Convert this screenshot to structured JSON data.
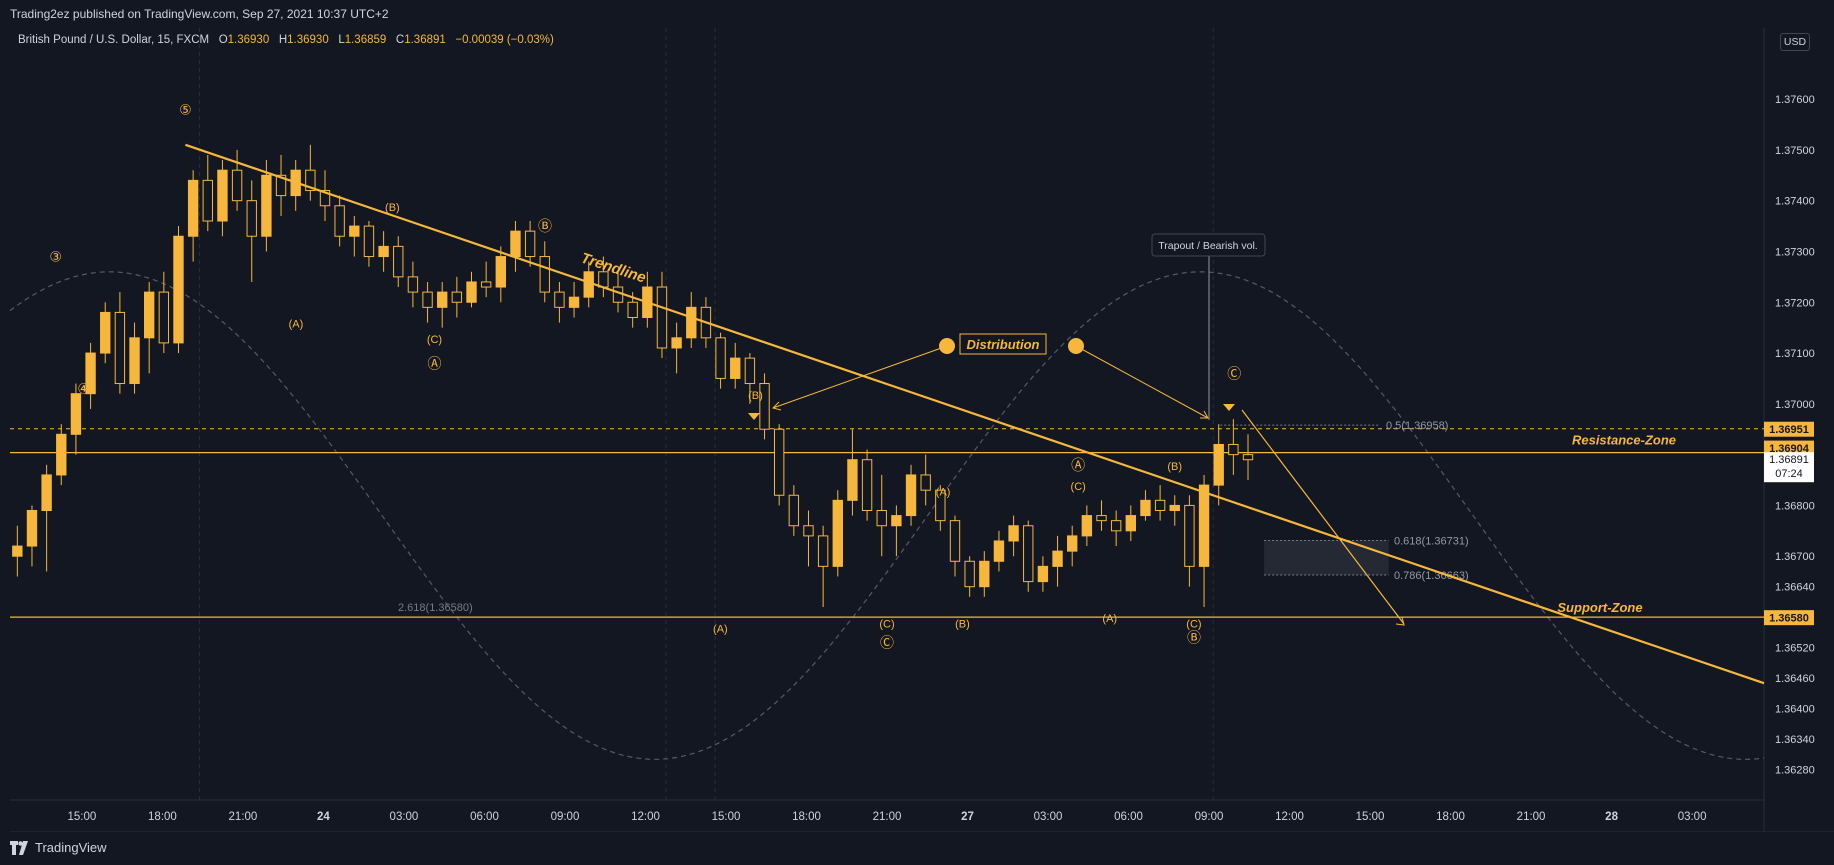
{
  "header": {
    "publish_line": "Trading2ez published on TradingView.com, Sep 27, 2021 10:37 UTC+2"
  },
  "legend": {
    "symbol": "British Pound / U.S. Dollar, 15, FXCM",
    "o_label": "O",
    "o_value": "1.36930",
    "h_label": "H",
    "h_value": "1.36930",
    "l_label": "L",
    "l_value": "1.36859",
    "c_label": "C",
    "c_value": "1.36891",
    "change": "−0.00039 (−0.03%)"
  },
  "currency_button": "USD",
  "footer": {
    "brand": "TradingView"
  },
  "colors": {
    "background": "#131722",
    "accent": "#f6b73c",
    "bull_candle": "#f6b73c",
    "bear_candle": "#131722",
    "grid": "#2a2e39",
    "text": "#d1d4dc"
  },
  "chart_data": {
    "type": "candlestick",
    "title": "British Pound / U.S. Dollar, 15, FXCM",
    "ylim": [
      1.3622,
      1.3774
    ],
    "y_ticks": [
      "1.37600",
      "1.37500",
      "1.37400",
      "1.37300",
      "1.37200",
      "1.37100",
      "1.37000",
      "1.36800",
      "1.36700",
      "1.36640",
      "1.36520",
      "1.36460",
      "1.36400",
      "1.36340",
      "1.36280"
    ],
    "x_ticks": [
      "15:00",
      "18:00",
      "21:00",
      "24",
      "03:00",
      "06:00",
      "09:00",
      "12:00",
      "15:00",
      "18:00",
      "21:00",
      "27",
      "03:00",
      "06:00",
      "09:00",
      "12:00",
      "15:00",
      "18:00",
      "21:00",
      "28",
      "03:00"
    ],
    "price_badges": [
      {
        "label": "1.36951",
        "style": "filled"
      },
      {
        "label": "1.36904",
        "style": "filled"
      },
      {
        "label": "1.36891",
        "sublabel": "07:24",
        "style": "current"
      },
      {
        "label": "1.36580",
        "style": "filled"
      }
    ],
    "levels": [
      {
        "name": "Resistance-Zone",
        "price": 1.36904
      },
      {
        "name": "Support-Zone",
        "price": 1.3658
      },
      {
        "name": "dashed-high",
        "price": 1.36951
      }
    ],
    "fib_labels": [
      "0.5(1.36958)",
      "0.618(1.36731)",
      "0.786(1.36663)",
      "2.618(1.36580)"
    ],
    "annotations": {
      "trendline": "Trendline",
      "distribution": "Distribution",
      "trapout": "Trapout / Bearish vol."
    },
    "wave_labels": [
      {
        "text": "⑤",
        "x": 0.1,
        "y": 1.3757
      },
      {
        "text": "③",
        "x": 0.026,
        "y": 1.3728
      },
      {
        "text": "④",
        "x": 0.042,
        "y": 1.3702
      },
      {
        "text": "(B)",
        "x": 0.218,
        "y": 1.3738
      },
      {
        "text": "Ⓑ",
        "x": 0.305,
        "y": 1.3734
      },
      {
        "text": "(A)",
        "x": 0.163,
        "y": 1.3715
      },
      {
        "text": "(C)",
        "x": 0.242,
        "y": 1.3712
      },
      {
        "text": "Ⓐ",
        "x": 0.242,
        "y": 1.3707
      },
      {
        "text": "(B)",
        "x": 0.425,
        "y": 1.3701
      },
      {
        "text": "(A)",
        "x": 0.405,
        "y": 1.3655
      },
      {
        "text": "(C)",
        "x": 0.5,
        "y": 1.3656
      },
      {
        "text": "Ⓒ",
        "x": 0.5,
        "y": 1.3652
      },
      {
        "text": "(B)",
        "x": 0.543,
        "y": 1.3656
      },
      {
        "text": "(A)",
        "x": 0.532,
        "y": 1.3682
      },
      {
        "text": "Ⓐ",
        "x": 0.609,
        "y": 1.3687
      },
      {
        "text": "(C)",
        "x": 0.609,
        "y": 1.3683
      },
      {
        "text": "(B)",
        "x": 0.664,
        "y": 1.3687
      },
      {
        "text": "(A)",
        "x": 0.627,
        "y": 1.3657
      },
      {
        "text": "(C)",
        "x": 0.675,
        "y": 1.3656
      },
      {
        "text": "Ⓑ",
        "x": 0.675,
        "y": 1.3653
      },
      {
        "text": "Ⓒ",
        "x": 0.698,
        "y": 1.3705
      }
    ],
    "candles": [
      [
        1.367,
        1.3676,
        1.3666,
        1.3672
      ],
      [
        1.3672,
        1.368,
        1.3668,
        1.3679
      ],
      [
        1.3679,
        1.3688,
        1.3667,
        1.3686
      ],
      [
        1.3686,
        1.3696,
        1.3684,
        1.3694
      ],
      [
        1.3694,
        1.3704,
        1.369,
        1.3702
      ],
      [
        1.3702,
        1.3712,
        1.3699,
        1.371
      ],
      [
        1.371,
        1.372,
        1.3708,
        1.3718
      ],
      [
        1.3718,
        1.3722,
        1.3702,
        1.3704
      ],
      [
        1.3704,
        1.3716,
        1.3702,
        1.3713
      ],
      [
        1.3713,
        1.3724,
        1.3706,
        1.3722
      ],
      [
        1.3722,
        1.3726,
        1.371,
        1.3712
      ],
      [
        1.3712,
        1.3735,
        1.371,
        1.3733
      ],
      [
        1.3733,
        1.3746,
        1.3728,
        1.3744
      ],
      [
        1.3744,
        1.3749,
        1.3734,
        1.3736
      ],
      [
        1.3736,
        1.3748,
        1.3733,
        1.3746
      ],
      [
        1.3746,
        1.375,
        1.3738,
        1.374
      ],
      [
        1.374,
        1.3744,
        1.3724,
        1.3733
      ],
      [
        1.3733,
        1.3748,
        1.373,
        1.3745
      ],
      [
        1.3745,
        1.3749,
        1.3737,
        1.3741
      ],
      [
        1.3741,
        1.3748,
        1.3738,
        1.3746
      ],
      [
        1.3746,
        1.3751,
        1.374,
        1.3742
      ],
      [
        1.3742,
        1.3746,
        1.3736,
        1.3739
      ],
      [
        1.3739,
        1.3741,
        1.3731,
        1.3733
      ],
      [
        1.3733,
        1.3737,
        1.3729,
        1.3735
      ],
      [
        1.3735,
        1.3736,
        1.3727,
        1.3729
      ],
      [
        1.3729,
        1.3734,
        1.3726,
        1.3731
      ],
      [
        1.3731,
        1.3733,
        1.3723,
        1.3725
      ],
      [
        1.3725,
        1.3728,
        1.3719,
        1.3722
      ],
      [
        1.3722,
        1.3724,
        1.3716,
        1.3719
      ],
      [
        1.3719,
        1.3724,
        1.3715,
        1.3722
      ],
      [
        1.3722,
        1.3725,
        1.3717,
        1.372
      ],
      [
        1.372,
        1.3726,
        1.3719,
        1.3724
      ],
      [
        1.3724,
        1.3728,
        1.3721,
        1.3723
      ],
      [
        1.3723,
        1.3731,
        1.372,
        1.3729
      ],
      [
        1.3729,
        1.3736,
        1.3726,
        1.3734
      ],
      [
        1.3734,
        1.3736,
        1.3727,
        1.3729
      ],
      [
        1.3729,
        1.3732,
        1.372,
        1.3722
      ],
      [
        1.3722,
        1.3724,
        1.3716,
        1.3719
      ],
      [
        1.3719,
        1.3724,
        1.3717,
        1.3721
      ],
      [
        1.3721,
        1.3728,
        1.3719,
        1.3726
      ],
      [
        1.3726,
        1.3729,
        1.3721,
        1.3723
      ],
      [
        1.3723,
        1.3726,
        1.3718,
        1.372
      ],
      [
        1.372,
        1.3722,
        1.3715,
        1.3717
      ],
      [
        1.3717,
        1.3726,
        1.3715,
        1.3723
      ],
      [
        1.3723,
        1.3726,
        1.3709,
        1.3711
      ],
      [
        1.3711,
        1.3716,
        1.3706,
        1.3713
      ],
      [
        1.3713,
        1.3722,
        1.3711,
        1.3719
      ],
      [
        1.3719,
        1.3721,
        1.3711,
        1.3713
      ],
      [
        1.3713,
        1.3714,
        1.3703,
        1.3705
      ],
      [
        1.3705,
        1.3712,
        1.3703,
        1.3709
      ],
      [
        1.3709,
        1.371,
        1.37,
        1.3704
      ],
      [
        1.3704,
        1.3706,
        1.3693,
        1.3695
      ],
      [
        1.3695,
        1.3696,
        1.368,
        1.3682
      ],
      [
        1.3682,
        1.3684,
        1.3674,
        1.3676
      ],
      [
        1.3676,
        1.3679,
        1.3668,
        1.3674
      ],
      [
        1.3674,
        1.3676,
        1.366,
        1.3668
      ],
      [
        1.3668,
        1.3683,
        1.3666,
        1.3681
      ],
      [
        1.3681,
        1.3695,
        1.3678,
        1.3689
      ],
      [
        1.3689,
        1.3691,
        1.3677,
        1.3679
      ],
      [
        1.3679,
        1.3686,
        1.367,
        1.3676
      ],
      [
        1.3676,
        1.368,
        1.367,
        1.3678
      ],
      [
        1.3678,
        1.3688,
        1.3676,
        1.3686
      ],
      [
        1.3686,
        1.369,
        1.368,
        1.3683
      ],
      [
        1.3683,
        1.3684,
        1.3675,
        1.3677
      ],
      [
        1.3677,
        1.3678,
        1.3666,
        1.3669
      ],
      [
        1.3669,
        1.367,
        1.3662,
        1.3664
      ],
      [
        1.3664,
        1.3671,
        1.3662,
        1.3669
      ],
      [
        1.3669,
        1.3675,
        1.3667,
        1.3673
      ],
      [
        1.3673,
        1.3678,
        1.367,
        1.3676
      ],
      [
        1.3676,
        1.3677,
        1.3663,
        1.3665
      ],
      [
        1.3665,
        1.367,
        1.3663,
        1.3668
      ],
      [
        1.3668,
        1.3674,
        1.3664,
        1.3671
      ],
      [
        1.3671,
        1.3676,
        1.3668,
        1.3674
      ],
      [
        1.3674,
        1.368,
        1.3672,
        1.3678
      ],
      [
        1.3678,
        1.3681,
        1.3675,
        1.3677
      ],
      [
        1.3677,
        1.3679,
        1.3672,
        1.3675
      ],
      [
        1.3675,
        1.368,
        1.3673,
        1.3678
      ],
      [
        1.3678,
        1.3683,
        1.3677,
        1.3681
      ],
      [
        1.3681,
        1.3684,
        1.3677,
        1.3679
      ],
      [
        1.3679,
        1.3682,
        1.3676,
        1.368
      ],
      [
        1.368,
        1.3682,
        1.3664,
        1.3668
      ],
      [
        1.3668,
        1.3686,
        1.366,
        1.3684
      ],
      [
        1.3684,
        1.3696,
        1.368,
        1.3692
      ],
      [
        1.3692,
        1.3697,
        1.3686,
        1.369
      ],
      [
        1.369,
        1.3694,
        1.3685,
        1.3689
      ]
    ]
  }
}
